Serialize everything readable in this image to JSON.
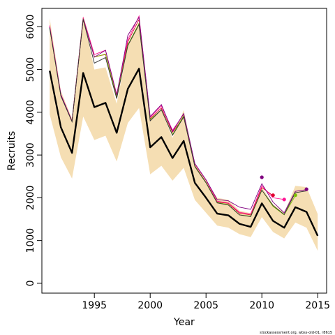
{
  "chart_data": {
    "type": "line",
    "xlabel": "Year",
    "ylabel": "Recruits",
    "credit": "stockassessment.org, wbss-old-01, r8615",
    "xlim": [
      1990.3,
      2015.8
    ],
    "ylim": [
      -230,
      6430
    ],
    "x_ticks": [
      1995,
      2000,
      2005,
      2010,
      2015
    ],
    "y_ticks": [
      0,
      1000,
      2000,
      3000,
      4000,
      5000,
      6000
    ],
    "grid": false,
    "colors": {
      "band": "#f5deb3",
      "estimate": "#000000",
      "frame": "#000000"
    },
    "band": {
      "x": [
        1991,
        1992,
        1993,
        1994,
        1995,
        1996,
        1997,
        1998,
        1999,
        2000,
        2001,
        2002,
        2003,
        2004,
        2005,
        2006,
        2007,
        2008,
        2009,
        2010,
        2011,
        2012,
        2013,
        2014,
        2015
      ],
      "lower": [
        3950,
        2950,
        2450,
        3900,
        3350,
        3450,
        2850,
        3750,
        4100,
        2550,
        2750,
        2400,
        2700,
        1950,
        1650,
        1350,
        1300,
        1150,
        1080,
        1550,
        1200,
        1050,
        1420,
        1300,
        760
      ],
      "upper": [
        6200,
        4500,
        3850,
        6250,
        5000,
        5050,
        4200,
        5550,
        6100,
        3850,
        4050,
        3400,
        4050,
        2800,
        2400,
        2000,
        1950,
        1700,
        1640,
        2250,
        1850,
        1650,
        2280,
        2250,
        1620
      ]
    },
    "series": [
      {
        "color": "#000000",
        "x": [
          1991,
          1992,
          1993,
          1994,
          1995,
          1996,
          1997,
          1998,
          1999,
          2000,
          2001,
          2002,
          2003,
          2004,
          2005,
          2006,
          2007,
          2008,
          2009,
          2010,
          2011,
          2012,
          2013,
          2014,
          2015
        ],
        "values": [
          4970,
          3650,
          3050,
          4920,
          4120,
          4220,
          3520,
          4550,
          5020,
          3180,
          3420,
          2930,
          3330,
          2350,
          2000,
          1630,
          1590,
          1390,
          1320,
          1870,
          1460,
          1300,
          1780,
          1670,
          1110
        ]
      },
      {
        "color": "#e00030",
        "x": [
          1991,
          1992,
          1993,
          1994,
          1995,
          1996,
          1997,
          1998,
          1999,
          2000,
          2001,
          2002,
          2003,
          2004,
          2005,
          2006,
          2007,
          2008,
          2009,
          2010,
          2011
        ],
        "values": [
          6000,
          4400,
          3800,
          6200,
          5300,
          5350,
          4350,
          5650,
          6170,
          3850,
          4100,
          3530,
          3900,
          2750,
          2360,
          1900,
          1870,
          1640,
          1600,
          2240,
          2050
        ]
      },
      {
        "color": "#ff1493",
        "x": [
          1991,
          1992,
          1993,
          1994,
          1995,
          1996,
          1997,
          1998,
          1999,
          2000,
          2001,
          2002,
          2003,
          2004,
          2005,
          2006,
          2007,
          2008,
          2009,
          2010,
          2011,
          2012
        ],
        "values": [
          6030,
          4420,
          3800,
          6220,
          5350,
          5450,
          4420,
          5700,
          6250,
          3880,
          4150,
          3580,
          3950,
          2790,
          2410,
          1920,
          1880,
          1660,
          1620,
          2280,
          2000,
          1960
        ]
      },
      {
        "color": "#7cc000",
        "x": [
          1991,
          1992,
          1993,
          1994,
          1995,
          1996,
          1997,
          1998,
          1999,
          2000,
          2001,
          2002,
          2003,
          2004,
          2005,
          2006,
          2007,
          2008,
          2009,
          2010,
          2011,
          2012,
          2013
        ],
        "values": [
          5980,
          4390,
          3790,
          6190,
          5290,
          5360,
          4360,
          5580,
          6080,
          3830,
          4060,
          3480,
          3920,
          2740,
          2360,
          1890,
          1840,
          1600,
          1570,
          2180,
          1800,
          1600,
          2050
        ]
      },
      {
        "color": "#800080",
        "x": [
          1991,
          1992,
          1993,
          1994,
          1995,
          1996,
          1997,
          1998,
          1999,
          2000,
          2001,
          2002,
          2003,
          2004,
          2005,
          2006,
          2007,
          2008,
          2009,
          2010,
          2011,
          2012,
          2013,
          2014
        ],
        "values": [
          5990,
          4410,
          3790,
          6180,
          5290,
          5450,
          4400,
          5800,
          6220,
          3900,
          4180,
          3550,
          3970,
          2800,
          2420,
          1960,
          1930,
          1780,
          1730,
          2330,
          1900,
          1650,
          2150,
          2190
        ]
      },
      {
        "color": "#333333",
        "x": [
          1991,
          1992,
          1993,
          1994,
          1995,
          1996,
          1997,
          1998,
          1999,
          2000,
          2001,
          2002,
          2003,
          2004,
          2005,
          2006,
          2007,
          2008,
          2009,
          2010,
          2011,
          2012,
          2013,
          2014
        ],
        "values": [
          5970,
          4380,
          3780,
          6170,
          5150,
          5280,
          4320,
          5560,
          6050,
          3800,
          4060,
          3460,
          3890,
          2730,
          2350,
          1880,
          1830,
          1600,
          1560,
          2180,
          1820,
          1610,
          2120,
          2160
        ]
      }
    ],
    "endpoints": [
      {
        "x": 2010,
        "y": 2480,
        "color": "#800080"
      },
      {
        "x": 2011,
        "y": 2060,
        "color": "#e00030"
      },
      {
        "x": 2012,
        "y": 1960,
        "color": "#ff1493"
      },
      {
        "x": 2013,
        "y": 2060,
        "color": "#7cc000"
      },
      {
        "x": 2014,
        "y": 2200,
        "color": "#800080"
      }
    ]
  }
}
